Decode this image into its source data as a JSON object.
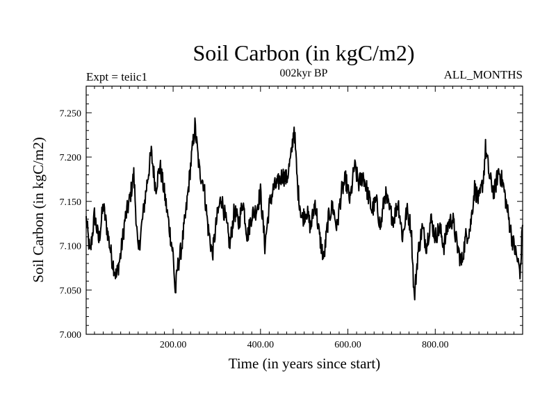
{
  "chart_data": {
    "type": "line",
    "title": "Soil Carbon (in kgC/m2)",
    "subtitle": "002kyr BP",
    "left_label": "Expt = teiic1",
    "right_label": "ALL_MONTHS",
    "xlabel": "Time (in years since start)",
    "ylabel": "Soil Carbon (in kgC/m2)",
    "xlim": [
      1,
      1000
    ],
    "ylim": [
      7.0,
      7.28
    ],
    "x_ticks": [
      {
        "value": 200,
        "label": "200.00"
      },
      {
        "value": 400,
        "label": "400.00"
      },
      {
        "value": 600,
        "label": "600.00"
      },
      {
        "value": 800,
        "label": "800.00"
      }
    ],
    "y_ticks": [
      {
        "value": 7.0,
        "label": "7.000"
      },
      {
        "value": 7.05,
        "label": "7.050"
      },
      {
        "value": 7.1,
        "label": "7.100"
      },
      {
        "value": 7.15,
        "label": "7.150"
      },
      {
        "value": 7.2,
        "label": "7.200"
      },
      {
        "value": 7.25,
        "label": "7.250"
      }
    ],
    "series": [
      {
        "color": "#000000",
        "x": [
          1,
          10,
          20,
          30,
          40,
          50,
          60,
          70,
          80,
          90,
          100,
          110,
          120,
          130,
          140,
          150,
          160,
          170,
          180,
          190,
          200,
          205,
          210,
          220,
          230,
          240,
          250,
          260,
          270,
          280,
          290,
          300,
          310,
          320,
          330,
          340,
          350,
          360,
          370,
          380,
          390,
          400,
          410,
          420,
          430,
          440,
          450,
          460,
          470,
          477,
          485,
          495,
          505,
          515,
          525,
          535,
          545,
          555,
          565,
          575,
          585,
          595,
          605,
          615,
          625,
          635,
          645,
          655,
          665,
          675,
          685,
          695,
          705,
          715,
          725,
          735,
          745,
          752,
          760,
          770,
          780,
          790,
          800,
          810,
          820,
          830,
          840,
          850,
          860,
          870,
          880,
          890,
          900,
          910,
          915,
          925,
          935,
          945,
          955,
          965,
          975,
          985,
          995,
          1000
        ],
        "y": [
          7.13,
          7.09,
          7.135,
          7.105,
          7.145,
          7.115,
          7.085,
          7.065,
          7.09,
          7.13,
          7.15,
          7.18,
          7.09,
          7.13,
          7.17,
          7.205,
          7.165,
          7.19,
          7.16,
          7.125,
          7.09,
          7.045,
          7.075,
          7.1,
          7.14,
          7.19,
          7.235,
          7.185,
          7.17,
          7.12,
          7.09,
          7.13,
          7.155,
          7.13,
          7.1,
          7.14,
          7.125,
          7.15,
          7.11,
          7.135,
          7.14,
          7.16,
          7.1,
          7.145,
          7.165,
          7.17,
          7.18,
          7.175,
          7.2,
          7.235,
          7.165,
          7.13,
          7.14,
          7.12,
          7.15,
          7.11,
          7.085,
          7.13,
          7.145,
          7.12,
          7.16,
          7.175,
          7.15,
          7.19,
          7.17,
          7.18,
          7.16,
          7.14,
          7.15,
          7.12,
          7.16,
          7.14,
          7.13,
          7.15,
          7.11,
          7.14,
          7.12,
          7.04,
          7.09,
          7.12,
          7.1,
          7.13,
          7.11,
          7.12,
          7.1,
          7.125,
          7.13,
          7.1,
          7.08,
          7.11,
          7.12,
          7.165,
          7.15,
          7.175,
          7.21,
          7.175,
          7.16,
          7.185,
          7.17,
          7.14,
          7.11,
          7.09,
          7.07,
          7.13
        ]
      }
    ],
    "grid": false
  }
}
